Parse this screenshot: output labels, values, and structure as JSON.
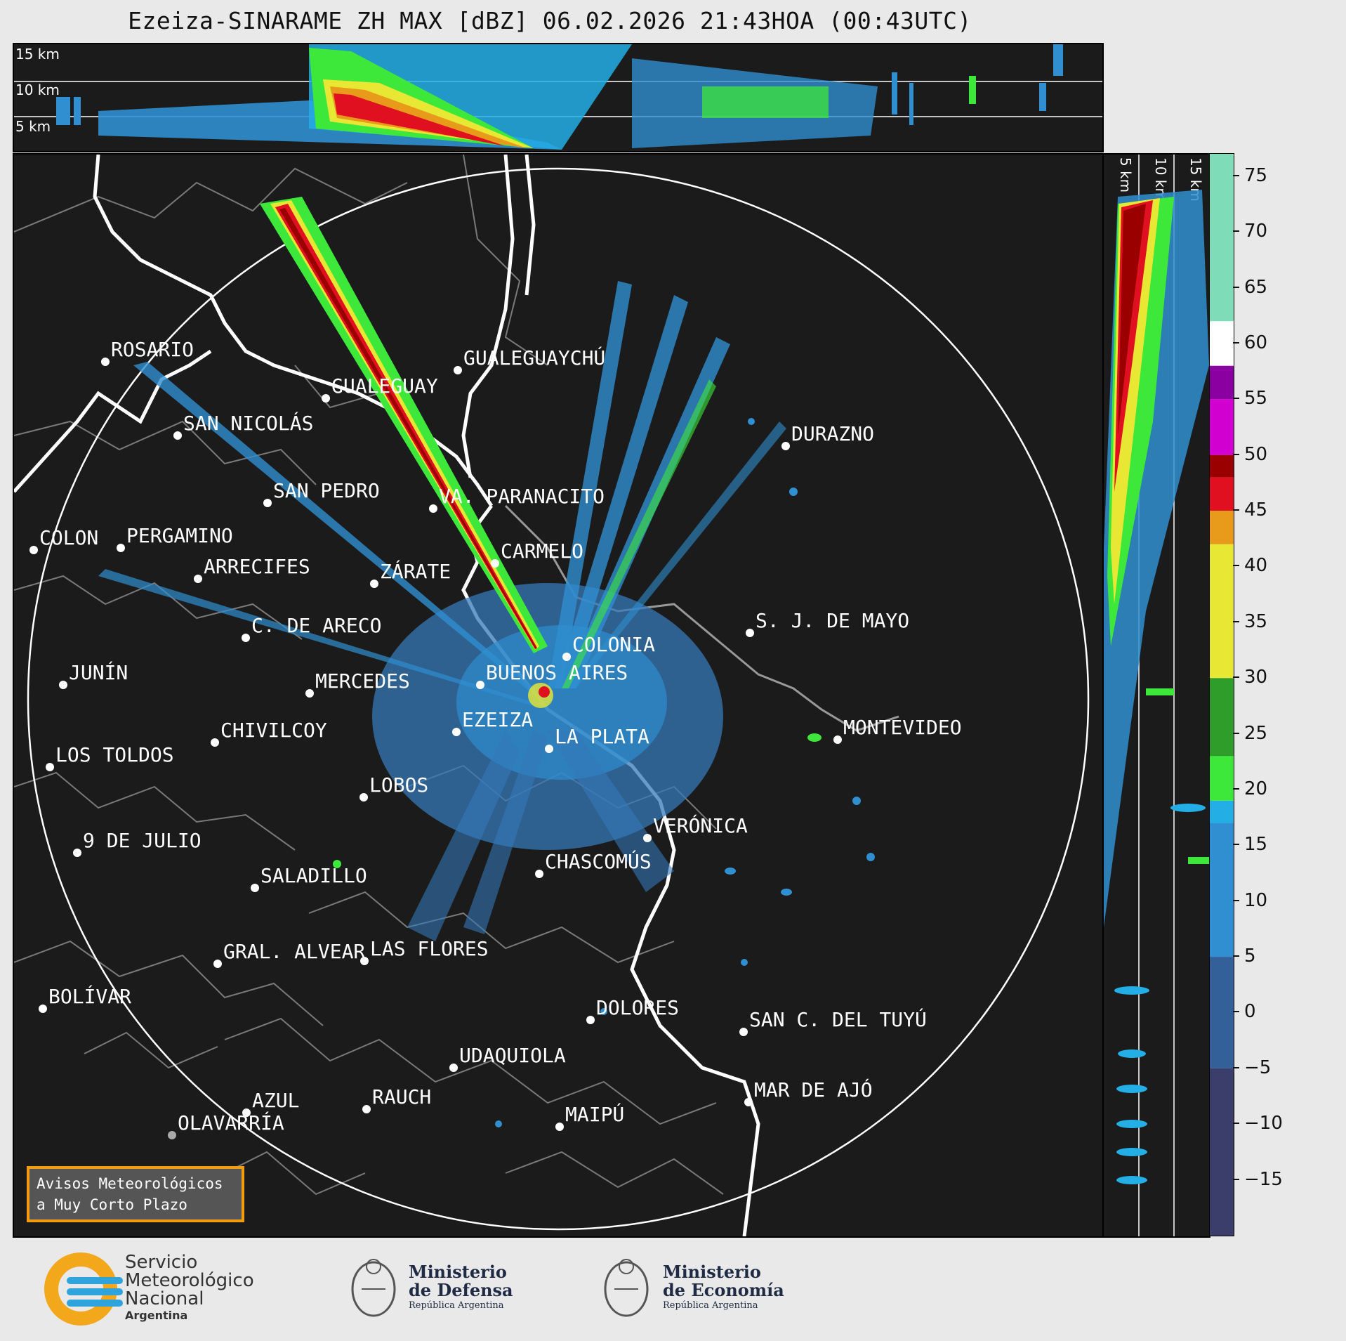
{
  "title": "Ezeiza-SINARAME ZH MAX [dBZ] 06.02.2026 21:43HOA (00:43UTC)",
  "top_panel": {
    "altitude_labels": [
      "15 km",
      "10 km",
      "5 km"
    ]
  },
  "side_panel": {
    "altitude_labels": [
      "5 km",
      "10 km",
      "15 km"
    ]
  },
  "cities": [
    {
      "name": "ROSARIO",
      "key": "rosario"
    },
    {
      "name": "GUALEGUAYCHÚ",
      "key": "gualeguaychu"
    },
    {
      "name": "GUALEGUAY",
      "key": "gualeguay"
    },
    {
      "name": "SAN NICOLÁS",
      "key": "san-nicolas"
    },
    {
      "name": "DURAZNO",
      "key": "durazno"
    },
    {
      "name": "SAN PEDRO",
      "key": "san-pedro"
    },
    {
      "name": "VA. PARANACITO",
      "key": "va-paranacito"
    },
    {
      "name": "COLON",
      "key": "colon"
    },
    {
      "name": "PERGAMINO",
      "key": "pergamino"
    },
    {
      "name": "CARMELO",
      "key": "carmelo"
    },
    {
      "name": "ARRECIFES",
      "key": "arrecifes"
    },
    {
      "name": "ZÁRATE",
      "key": "zarate"
    },
    {
      "name": "S. J. DE MAYO",
      "key": "sj-de-mayo"
    },
    {
      "name": "C. DE ARECO",
      "key": "c-de-areco"
    },
    {
      "name": "COLONIA",
      "key": "colonia"
    },
    {
      "name": "JUNÍN",
      "key": "junin"
    },
    {
      "name": "BUENOS AIRES",
      "key": "buenos-aires"
    },
    {
      "name": "MERCEDES",
      "key": "mercedes"
    },
    {
      "name": "MONTEVIDEO",
      "key": "montevideo"
    },
    {
      "name": "EZEIZA",
      "key": "ezeiza"
    },
    {
      "name": "CHIVILCOY",
      "key": "chivilcoy"
    },
    {
      "name": "LA PLATA",
      "key": "la-plata"
    },
    {
      "name": "LOS TOLDOS",
      "key": "los-toldos"
    },
    {
      "name": "LOBOS",
      "key": "lobos"
    },
    {
      "name": "VERÓNICA",
      "key": "veronica"
    },
    {
      "name": "9 DE JULIO",
      "key": "9-de-julio"
    },
    {
      "name": "CHASCOMÚS",
      "key": "chascomus"
    },
    {
      "name": "SALADILLO",
      "key": "saladillo"
    },
    {
      "name": "GRAL. ALVEAR",
      "key": "gral-alvear"
    },
    {
      "name": "LAS FLORES",
      "key": "las-flores"
    },
    {
      "name": "BOLÍVAR",
      "key": "bolivar"
    },
    {
      "name": "DOLORES",
      "key": "dolores"
    },
    {
      "name": "SAN C. DEL TUYÚ",
      "key": "san-c-del-tuyu"
    },
    {
      "name": "UDAQUIOLA",
      "key": "udaquiola"
    },
    {
      "name": "MAR DE AJÓ",
      "key": "mar-de-ajo"
    },
    {
      "name": "AZUL",
      "key": "azul"
    },
    {
      "name": "RAUCH",
      "key": "rauch"
    },
    {
      "name": "MAIPÚ",
      "key": "maipu"
    },
    {
      "name": "OLAVARRÍA",
      "key": "olavarria"
    }
  ],
  "colorbar": {
    "unit": "dBZ",
    "ticks": [
      "75",
      "70",
      "65",
      "60",
      "55",
      "50",
      "45",
      "40",
      "35",
      "30",
      "25",
      "20",
      "15",
      "10",
      "5",
      "0",
      "−5",
      "−10",
      "−15"
    ],
    "range": [
      -20,
      77
    ],
    "colors": {
      "low": "#3b3d6b",
      "blue": "#2f8fd0",
      "cyan": "#23aee6",
      "green": "#2e9d2a",
      "lightgreen": "#3ee83a",
      "yellow": "#e8e834",
      "orange": "#e89a1a",
      "red": "#e01020",
      "darkred": "#9a0000",
      "magenta": "#d100d1",
      "purple": "#8a00a0",
      "white": "#ffffff",
      "mint": "#7fdcb8"
    }
  },
  "warning_box": {
    "line1": "Avisos Meteorológicos",
    "line2": "a Muy Corto Plazo"
  },
  "footer": {
    "smn": {
      "line1": "Servicio",
      "line2": "Meteorológico",
      "line3": "Nacional",
      "line4": "Argentina"
    },
    "defensa": {
      "line1": "Ministerio",
      "line2": "de Defensa",
      "line3": "República Argentina"
    },
    "economia": {
      "line1": "Ministerio",
      "line2": "de Economía",
      "line3": "República Argentina"
    }
  }
}
